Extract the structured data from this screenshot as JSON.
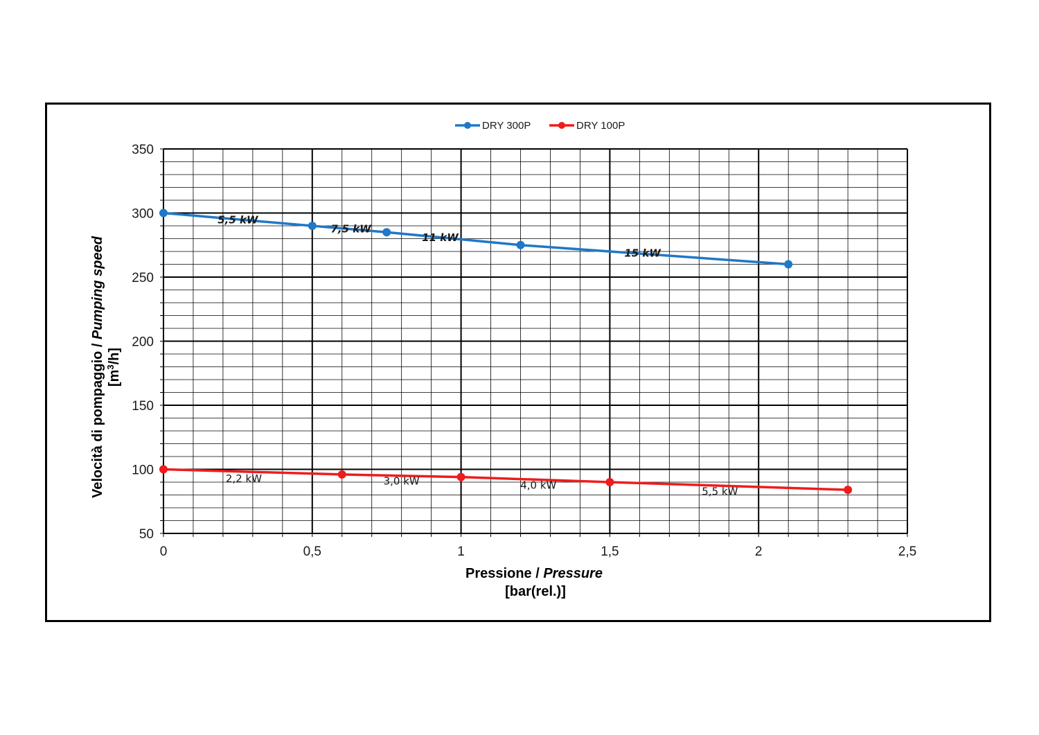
{
  "chart_data": {
    "type": "line",
    "xlabel": "Pressione / ",
    "xlabel_italic": "Pressure",
    "xunit": "[bar(rel.)]",
    "ylabel": "Velocità di pompaggio / ",
    "ylabel_italic": "Pumping speed",
    "yunit_prefix": "[m",
    "yunit_sup": "3",
    "yunit_suffix": "/h]",
    "xlim": [
      0,
      2.5
    ],
    "ylim": [
      50,
      350
    ],
    "xticks": [
      "0",
      "0,5",
      "1",
      "1,5",
      "2",
      "2,5"
    ],
    "yticks": [
      "50",
      "100",
      "150",
      "200",
      "250",
      "300",
      "350"
    ],
    "grid": true,
    "legend_position": "top-center",
    "series": [
      {
        "name": "DRY 300P",
        "color": "#1f78c8",
        "x": [
          0,
          0.5,
          0.75,
          1.2,
          2.1
        ],
        "y": [
          300,
          290,
          285,
          275,
          260
        ],
        "segment_labels": [
          {
            "text": "5,5 kW",
            "x": 0.25,
            "y": 292
          },
          {
            "text": "7,5 kW",
            "x": 0.63,
            "y": 285
          },
          {
            "text": "11 kW",
            "x": 0.93,
            "y": 278
          },
          {
            "text": "15 kW",
            "x": 1.61,
            "y": 266
          }
        ],
        "label_style": "bold-italic"
      },
      {
        "name": "DRY 100P",
        "color": "#ee1c1c",
        "x": [
          0,
          0.6,
          1.0,
          1.5,
          2.3
        ],
        "y": [
          100,
          96,
          94,
          90,
          84
        ],
        "segment_labels": [
          {
            "text": "2,2 kW",
            "x": 0.27,
            "y": 90
          },
          {
            "text": "3,0 kW",
            "x": 0.8,
            "y": 88
          },
          {
            "text": "4,0 kW",
            "x": 1.26,
            "y": 85
          },
          {
            "text": "5,5 kW",
            "x": 1.87,
            "y": 80
          }
        ],
        "label_style": "normal"
      }
    ]
  }
}
